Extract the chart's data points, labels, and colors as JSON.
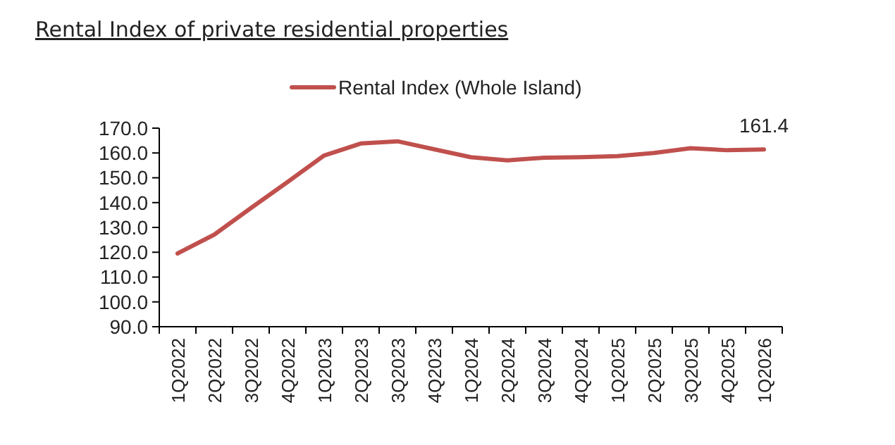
{
  "chart_data": {
    "type": "line",
    "title": "Rental Index of private residential properties",
    "categories": [
      "1Q2022",
      "2Q2022",
      "3Q2022",
      "4Q2022",
      "1Q2023",
      "2Q2023",
      "3Q2023",
      "4Q2023",
      "1Q2024",
      "2Q2024",
      "3Q2024",
      "4Q2024",
      "1Q2025",
      "2Q2025",
      "3Q2025",
      "4Q2025",
      "1Q2026"
    ],
    "series": [
      {
        "name": "Rental Index (Whole Island)",
        "color": "#c0504d",
        "values": [
          119.5,
          127.1,
          137.8,
          148.3,
          159.0,
          163.8,
          164.7,
          161.5,
          158.3,
          157.0,
          158.1,
          158.3,
          158.7,
          160.0,
          161.9,
          161.1,
          161.4
        ]
      }
    ],
    "ylim": [
      90,
      170
    ],
    "yticks": [
      {
        "value": 90,
        "label": "90.0"
      },
      {
        "value": 100,
        "label": "100.0"
      },
      {
        "value": 110,
        "label": "110.0"
      },
      {
        "value": 120,
        "label": "120.0"
      },
      {
        "value": 130,
        "label": "130.0"
      },
      {
        "value": 140,
        "label": "140.0"
      },
      {
        "value": 150,
        "label": "150.0"
      },
      {
        "value": 160,
        "label": "160.0"
      },
      {
        "value": 170,
        "label": "170.0"
      }
    ],
    "annotations": [
      {
        "text": "161.4",
        "x": "1Q2026",
        "y": 161.4
      }
    ],
    "legend": "top",
    "grid": false,
    "marker": "none",
    "line_style": "solid"
  }
}
